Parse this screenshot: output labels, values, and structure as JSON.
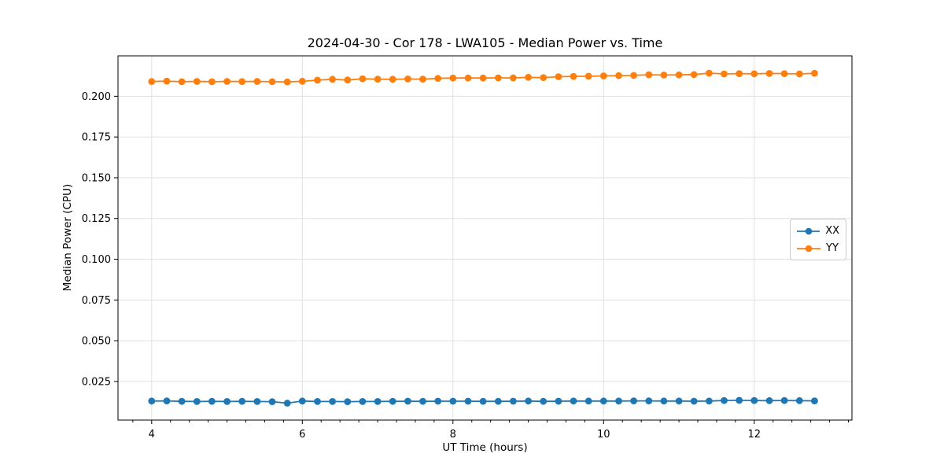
{
  "figure": {
    "background": "#ffffff",
    "spine_color": "#000000"
  },
  "chart_data": {
    "type": "line",
    "title": "2024-04-30 - Cor 178 - LWA105 - Median Power vs. Time",
    "xlabel": "UT Time (hours)",
    "ylabel": "Median Power (CPU)",
    "xlim": [
      3.553,
      13.297
    ],
    "ylim": [
      0.0013,
      0.2248
    ],
    "grid": true,
    "grid_color": "#e0e0e0",
    "legend_position": "center right",
    "xticks": [
      4,
      6,
      8,
      10,
      12
    ],
    "xtick_labels": [
      "4",
      "6",
      "8",
      "10",
      "12"
    ],
    "minor_xtick_step": 0.25,
    "yticks": [
      0.025,
      0.05,
      0.075,
      0.1,
      0.125,
      0.15,
      0.175,
      0.2
    ],
    "ytick_labels": [
      "0.025",
      "0.050",
      "0.075",
      "0.100",
      "0.125",
      "0.150",
      "0.175",
      "0.200"
    ],
    "x": [
      4.0,
      4.2,
      4.4,
      4.6,
      4.8,
      5.0,
      5.2,
      5.4,
      5.6,
      5.8,
      6.0,
      6.2,
      6.4,
      6.6,
      6.8,
      7.0,
      7.2,
      7.4,
      7.6,
      7.8,
      8.0,
      8.2,
      8.4,
      8.6,
      8.8,
      9.0,
      9.2,
      9.4,
      9.6,
      9.8,
      10.0,
      10.2,
      10.4,
      10.6,
      10.8,
      11.0,
      11.2,
      11.4,
      11.6,
      11.8,
      12.0,
      12.2,
      12.4,
      12.6,
      12.8
    ],
    "series": [
      {
        "name": "XX",
        "color": "#1f77b4",
        "values": [
          0.013,
          0.0131,
          0.0128,
          0.0127,
          0.0128,
          0.0127,
          0.0128,
          0.0127,
          0.0126,
          0.0117,
          0.013,
          0.0127,
          0.0127,
          0.0126,
          0.0127,
          0.0127,
          0.0128,
          0.0129,
          0.0128,
          0.0129,
          0.0129,
          0.0129,
          0.0128,
          0.0128,
          0.0129,
          0.013,
          0.0128,
          0.0129,
          0.013,
          0.013,
          0.013,
          0.013,
          0.0131,
          0.0131,
          0.013,
          0.013,
          0.0129,
          0.013,
          0.0133,
          0.0134,
          0.0133,
          0.0132,
          0.0133,
          0.0132,
          0.0131
        ]
      },
      {
        "name": "YY",
        "color": "#ff7f0e",
        "values": [
          0.209,
          0.2093,
          0.2089,
          0.2091,
          0.2089,
          0.2091,
          0.209,
          0.2091,
          0.2089,
          0.2088,
          0.2092,
          0.2099,
          0.2104,
          0.21,
          0.2107,
          0.2105,
          0.2104,
          0.2106,
          0.2105,
          0.211,
          0.2112,
          0.2112,
          0.2112,
          0.2113,
          0.2113,
          0.2116,
          0.2115,
          0.212,
          0.2122,
          0.2123,
          0.2125,
          0.2127,
          0.2128,
          0.2132,
          0.213,
          0.2131,
          0.2133,
          0.2142,
          0.2137,
          0.2139,
          0.2138,
          0.214,
          0.2139,
          0.2137,
          0.2141
        ]
      }
    ]
  }
}
